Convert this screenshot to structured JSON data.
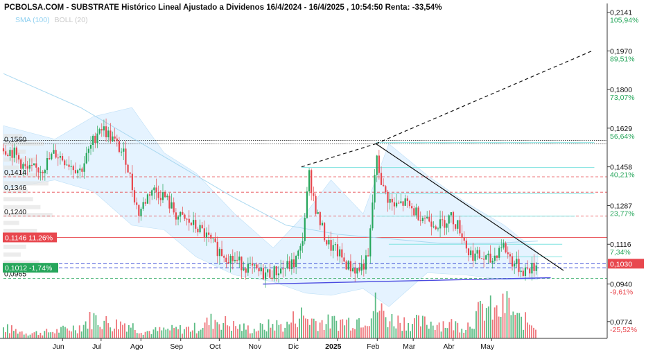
{
  "title": "PCBOLSA.COM - SUBSTRATE Histórico Lineal Ajustado a Dividenos 16/4/2024 - 16/4/2025 , 10:54:50 Renta: -33,54%",
  "legend": {
    "sma": "SMA (100)",
    "boll": "BOLL (20)"
  },
  "colors": {
    "up": "#26a65b",
    "down": "#e8474e",
    "sma": "#a9d8f0",
    "band": "#dcefff",
    "trend": "#111111",
    "support": "#4a4ae0"
  },
  "chart_data": {
    "type": "candlestick",
    "title": "PCBOLSA.COM - SUBSTRATE Histórico Lineal Ajustado a Dividenos 16/4/2024 - 16/4/2025 , 10:54:50 Renta: -33,54%",
    "x_labels": [
      "Jun",
      "Jul",
      "Ago",
      "Sep",
      "Oct",
      "Nov",
      "Dic",
      "2025",
      "Feb",
      "Mar",
      "Abr",
      "May"
    ],
    "ylim": [
      0.07,
      0.218
    ],
    "right_axis": [
      {
        "price": "0,2141",
        "pct": "105,94%"
      },
      {
        "price": "0,1970",
        "pct": "89,51%"
      },
      {
        "price": "0,1800",
        "pct": "73,07%"
      },
      {
        "price": "0,1629",
        "pct": "56,64%"
      },
      {
        "price": "0,1458",
        "pct": "40,21%"
      },
      {
        "price": "0,1287",
        "pct": "23,77%"
      },
      {
        "price": "0,1116",
        "pct": "7,34%"
      },
      {
        "price": "0,0940",
        "pct": "-9,61%"
      },
      {
        "price": "0,0774",
        "pct": "-25,52%"
      }
    ],
    "left_levels": [
      {
        "label": "0,1560",
        "value": 0.156
      },
      {
        "label": "0,1414",
        "value": 0.1414
      },
      {
        "label": "0,1346",
        "value": 0.1346
      },
      {
        "label": "0,1240",
        "value": 0.124
      },
      {
        "label": "0,1146",
        "value": 0.1146
      },
      {
        "label": "0,1012",
        "value": 0.1012
      },
      {
        "label": "0,0965",
        "value": 0.0965
      }
    ],
    "ref_badge": {
      "price": "0,1146",
      "pct": "11,26%",
      "value": 0.1146
    },
    "current_badge": {
      "price": "0,1012",
      "pct": "-1,74%",
      "value": 0.1012
    },
    "last_price": {
      "label": "0,1030",
      "value": 0.103
    },
    "close_path": [
      {
        "d": 0,
        "v": 0.154
      },
      {
        "d": 8,
        "v": 0.152
      },
      {
        "d": 18,
        "v": 0.144
      },
      {
        "d": 30,
        "v": 0.145
      },
      {
        "d": 40,
        "v": 0.152
      },
      {
        "d": 52,
        "v": 0.147
      },
      {
        "d": 60,
        "v": 0.144
      },
      {
        "d": 75,
        "v": 0.164
      },
      {
        "d": 85,
        "v": 0.158
      },
      {
        "d": 95,
        "v": 0.15
      },
      {
        "d": 105,
        "v": 0.125
      },
      {
        "d": 115,
        "v": 0.136
      },
      {
        "d": 125,
        "v": 0.133
      },
      {
        "d": 135,
        "v": 0.124
      },
      {
        "d": 145,
        "v": 0.121
      },
      {
        "d": 155,
        "v": 0.117
      },
      {
        "d": 165,
        "v": 0.11
      },
      {
        "d": 175,
        "v": 0.106
      },
      {
        "d": 185,
        "v": 0.103
      },
      {
        "d": 195,
        "v": 0.1
      },
      {
        "d": 202,
        "v": 0.0985
      },
      {
        "d": 210,
        "v": 0.099
      },
      {
        "d": 218,
        "v": 0.101
      },
      {
        "d": 226,
        "v": 0.103
      },
      {
        "d": 232,
        "v": 0.11
      },
      {
        "d": 238,
        "v": 0.142
      },
      {
        "d": 244,
        "v": 0.125
      },
      {
        "d": 252,
        "v": 0.112
      },
      {
        "d": 260,
        "v": 0.108
      },
      {
        "d": 268,
        "v": 0.102
      },
      {
        "d": 276,
        "v": 0.1
      },
      {
        "d": 284,
        "v": 0.105
      },
      {
        "d": 290,
        "v": 0.15
      },
      {
        "d": 296,
        "v": 0.135
      },
      {
        "d": 304,
        "v": 0.128
      },
      {
        "d": 312,
        "v": 0.13
      },
      {
        "d": 320,
        "v": 0.126
      },
      {
        "d": 330,
        "v": 0.123
      },
      {
        "d": 340,
        "v": 0.12
      },
      {
        "d": 348,
        "v": 0.124
      },
      {
        "d": 356,
        "v": 0.118
      },
      {
        "d": 362,
        "v": 0.108
      },
      {
        "d": 370,
        "v": 0.106
      },
      {
        "d": 380,
        "v": 0.104
      },
      {
        "d": 388,
        "v": 0.112
      },
      {
        "d": 396,
        "v": 0.104
      },
      {
        "d": 404,
        "v": 0.1
      },
      {
        "d": 412,
        "v": 0.101
      },
      {
        "d": 416,
        "v": 0.103
      }
    ],
    "sma_path": [
      {
        "d": 0,
        "v": 0.187
      },
      {
        "d": 60,
        "v": 0.172
      },
      {
        "d": 120,
        "v": 0.152
      },
      {
        "d": 180,
        "v": 0.132
      },
      {
        "d": 220,
        "v": 0.12
      },
      {
        "d": 260,
        "v": 0.116
      },
      {
        "d": 300,
        "v": 0.114
      },
      {
        "d": 340,
        "v": 0.112
      },
      {
        "d": 380,
        "v": 0.112
      },
      {
        "d": 416,
        "v": 0.113
      }
    ],
    "boll_upper": [
      {
        "d": 0,
        "v": 0.164
      },
      {
        "d": 40,
        "v": 0.158
      },
      {
        "d": 70,
        "v": 0.168
      },
      {
        "d": 100,
        "v": 0.172
      },
      {
        "d": 125,
        "v": 0.152
      },
      {
        "d": 150,
        "v": 0.143
      },
      {
        "d": 180,
        "v": 0.125
      },
      {
        "d": 210,
        "v": 0.11
      },
      {
        "d": 235,
        "v": 0.125
      },
      {
        "d": 255,
        "v": 0.14
      },
      {
        "d": 280,
        "v": 0.125
      },
      {
        "d": 300,
        "v": 0.156
      },
      {
        "d": 330,
        "v": 0.142
      },
      {
        "d": 360,
        "v": 0.13
      },
      {
        "d": 390,
        "v": 0.12
      },
      {
        "d": 416,
        "v": 0.108
      }
    ],
    "boll_lower": [
      {
        "d": 0,
        "v": 0.136
      },
      {
        "d": 40,
        "v": 0.14
      },
      {
        "d": 70,
        "v": 0.135
      },
      {
        "d": 100,
        "v": 0.12
      },
      {
        "d": 125,
        "v": 0.118
      },
      {
        "d": 150,
        "v": 0.106
      },
      {
        "d": 180,
        "v": 0.098
      },
      {
        "d": 210,
        "v": 0.095
      },
      {
        "d": 235,
        "v": 0.09
      },
      {
        "d": 255,
        "v": 0.089
      },
      {
        "d": 280,
        "v": 0.092
      },
      {
        "d": 300,
        "v": 0.084
      },
      {
        "d": 330,
        "v": 0.099
      },
      {
        "d": 360,
        "v": 0.098
      },
      {
        "d": 390,
        "v": 0.096
      },
      {
        "d": 416,
        "v": 0.096
      }
    ],
    "trendlines": [
      {
        "style": "dashed",
        "from": {
          "d": 232,
          "v": 0.1458
        },
        "to": {
          "d": 290,
          "v": 0.156
        }
      },
      {
        "style": "dashed",
        "from": {
          "d": 290,
          "v": 0.156
        },
        "to": {
          "d": 458,
          "v": 0.197
        }
      },
      {
        "style": "solid",
        "from": {
          "d": 290,
          "v": 0.156
        },
        "to": {
          "d": 436,
          "v": 0.1
        }
      },
      {
        "style": "support",
        "from": {
          "d": 202,
          "v": 0.094
        },
        "to": {
          "d": 426,
          "v": 0.0968
        }
      }
    ],
    "cyan_lines": [
      {
        "v": 0.1565,
        "from": 290,
        "to": 460
      },
      {
        "v": 0.1455,
        "from": 232,
        "to": 460
      },
      {
        "v": 0.134,
        "from": 290,
        "to": 460
      },
      {
        "v": 0.124,
        "from": 290,
        "to": 445
      },
      {
        "v": 0.1116,
        "from": 300,
        "to": 435
      },
      {
        "v": 0.106,
        "from": 300,
        "to": 435
      }
    ],
    "volume": [
      {
        "d": 0,
        "v": 0.3
      },
      {
        "d": 20,
        "v": 0.15
      },
      {
        "d": 40,
        "v": 0.2
      },
      {
        "d": 60,
        "v": 0.35
      },
      {
        "d": 70,
        "v": 0.6
      },
      {
        "d": 85,
        "v": 0.4
      },
      {
        "d": 95,
        "v": 0.45
      },
      {
        "d": 110,
        "v": 0.2
      },
      {
        "d": 130,
        "v": 0.25
      },
      {
        "d": 150,
        "v": 0.3
      },
      {
        "d": 165,
        "v": 0.55
      },
      {
        "d": 180,
        "v": 0.35
      },
      {
        "d": 195,
        "v": 0.25
      },
      {
        "d": 210,
        "v": 0.4
      },
      {
        "d": 220,
        "v": 0.35
      },
      {
        "d": 230,
        "v": 0.7
      },
      {
        "d": 238,
        "v": 0.55
      },
      {
        "d": 250,
        "v": 0.45
      },
      {
        "d": 270,
        "v": 0.5
      },
      {
        "d": 285,
        "v": 0.65
      },
      {
        "d": 290,
        "v": 0.95
      },
      {
        "d": 300,
        "v": 0.55
      },
      {
        "d": 320,
        "v": 0.45
      },
      {
        "d": 340,
        "v": 0.45
      },
      {
        "d": 360,
        "v": 0.35
      },
      {
        "d": 375,
        "v": 0.9
      },
      {
        "d": 385,
        "v": 0.7
      },
      {
        "d": 392,
        "v": 1.0
      },
      {
        "d": 400,
        "v": 0.55
      },
      {
        "d": 416,
        "v": 0.4
      }
    ]
  }
}
